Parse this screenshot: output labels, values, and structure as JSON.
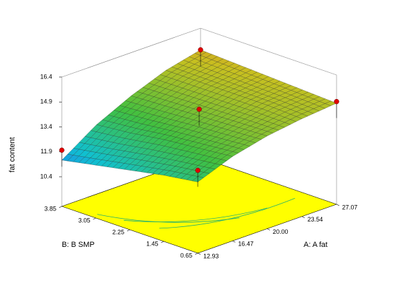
{
  "chart_data": {
    "type": "surface",
    "z_label": "fat content",
    "x_label": "A: A fat",
    "y_label": "B: B SMP",
    "xlim": [
      12.93,
      27.07
    ],
    "xticks": [
      12.93,
      16.47,
      {
        "value": 20,
        "label": "20.00"
      },
      23.54,
      27.07
    ],
    "ylim": [
      0.65,
      3.85
    ],
    "yticks": [
      0.65,
      1.45,
      2.25,
      3.05,
      3.85
    ],
    "zlim": [
      10.4,
      16.4
    ],
    "zticks": [
      10.4,
      11.9,
      13.4,
      14.9,
      16.4
    ],
    "x": [
      12.93,
      16.47,
      20,
      23.54,
      27.07
    ],
    "y": [
      0.65,
      1.45,
      2.25,
      3.05,
      3.85
    ],
    "z": [
      [
        12.9,
        12.6,
        12.2,
        11.8,
        11.4
      ],
      [
        13.7,
        13.5,
        13.3,
        13.0,
        12.8
      ],
      [
        14.2,
        14.1,
        14.0,
        13.9,
        13.8
      ],
      [
        14.5,
        14.6,
        14.6,
        14.6,
        14.6
      ],
      [
        14.7,
        14.8,
        14.9,
        15.0,
        15.1
      ]
    ],
    "colormap": [
      "#2a4cff",
      "#10c0d0",
      "#40c040",
      "#c8c020",
      "#ff3020"
    ],
    "points": {
      "color": "#e00000",
      "x": [
        12.93,
        12.93,
        27.07,
        27.07,
        20
      ],
      "y": [
        3.85,
        0.65,
        0.65,
        3.85,
        2.25
      ],
      "z": [
        12.0,
        13.6,
        14.8,
        15.1,
        14.4
      ]
    },
    "floor_color": "#ffff00"
  }
}
